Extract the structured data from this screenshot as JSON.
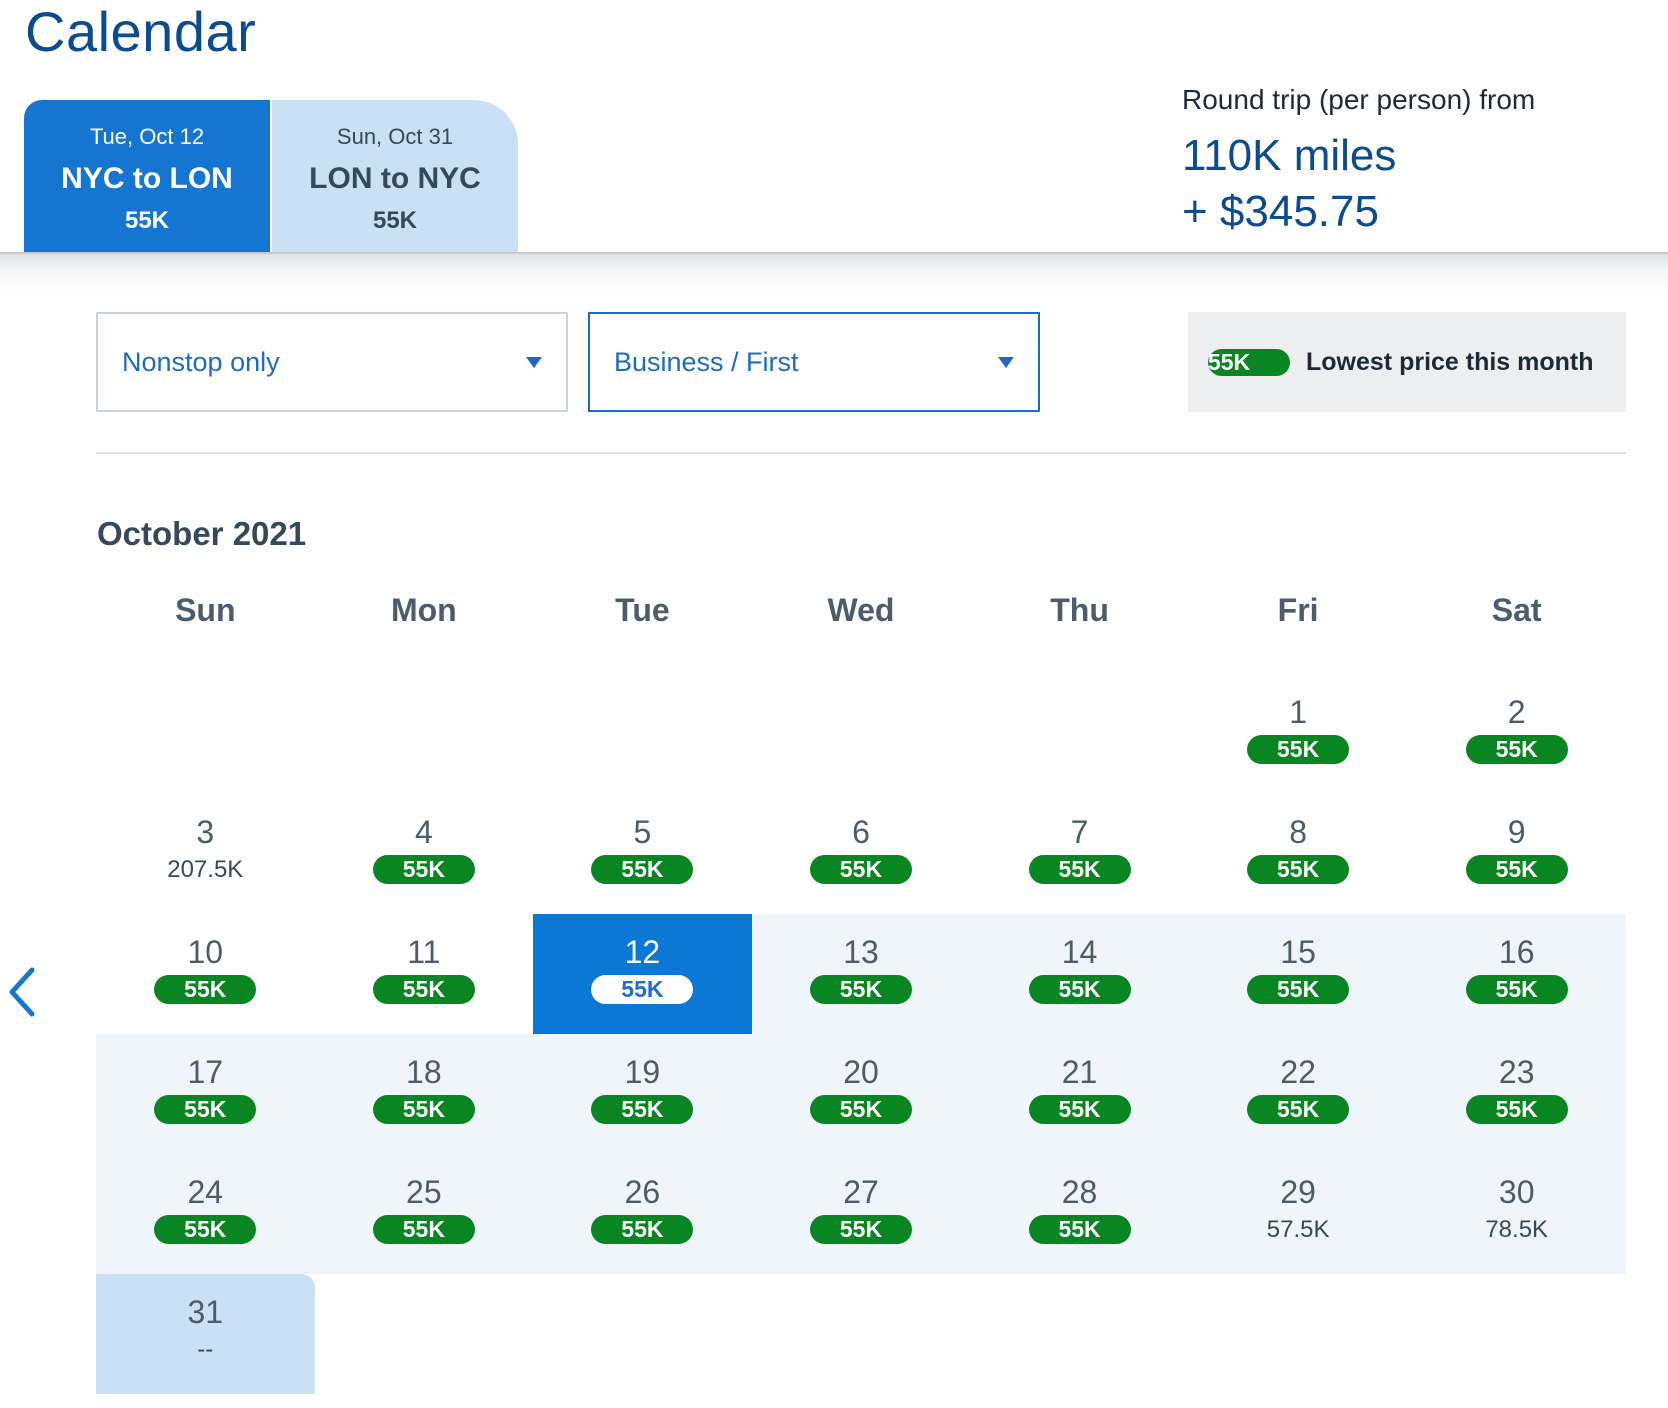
{
  "page": {
    "title": "Calendar"
  },
  "tabs": [
    {
      "date": "Tue, Oct 12",
      "route": "NYC to LON",
      "price": "55K"
    },
    {
      "date": "Sun, Oct 31",
      "route": "LON to NYC",
      "price": "55K"
    }
  ],
  "summary": {
    "label": "Round trip (per person) from",
    "miles": "110K miles",
    "cash": "+ $345.75"
  },
  "filters": {
    "stops": {
      "value": "Nonstop only"
    },
    "cabin": {
      "value": "Business / First"
    }
  },
  "legend": {
    "badge": "55K",
    "label": "Lowest price this month"
  },
  "calendar": {
    "month": "October 2021",
    "weekdays": [
      "Sun",
      "Mon",
      "Tue",
      "Wed",
      "Thu",
      "Fri",
      "Sat"
    ],
    "days": [
      {
        "day": "1",
        "price": "55K",
        "lowest": true
      },
      {
        "day": "2",
        "price": "55K",
        "lowest": true
      },
      {
        "day": "3",
        "price": "207.5K",
        "lowest": false
      },
      {
        "day": "4",
        "price": "55K",
        "lowest": true
      },
      {
        "day": "5",
        "price": "55K",
        "lowest": true
      },
      {
        "day": "6",
        "price": "55K",
        "lowest": true
      },
      {
        "day": "7",
        "price": "55K",
        "lowest": true
      },
      {
        "day": "8",
        "price": "55K",
        "lowest": true
      },
      {
        "day": "9",
        "price": "55K",
        "lowest": true
      },
      {
        "day": "10",
        "price": "55K",
        "lowest": true
      },
      {
        "day": "11",
        "price": "55K",
        "lowest": true
      },
      {
        "day": "12",
        "price": "55K",
        "lowest": true,
        "selected": true
      },
      {
        "day": "13",
        "price": "55K",
        "lowest": true
      },
      {
        "day": "14",
        "price": "55K",
        "lowest": true
      },
      {
        "day": "15",
        "price": "55K",
        "lowest": true
      },
      {
        "day": "16",
        "price": "55K",
        "lowest": true
      },
      {
        "day": "17",
        "price": "55K",
        "lowest": true
      },
      {
        "day": "18",
        "price": "55K",
        "lowest": true
      },
      {
        "day": "19",
        "price": "55K",
        "lowest": true
      },
      {
        "day": "20",
        "price": "55K",
        "lowest": true
      },
      {
        "day": "21",
        "price": "55K",
        "lowest": true
      },
      {
        "day": "22",
        "price": "55K",
        "lowest": true
      },
      {
        "day": "23",
        "price": "55K",
        "lowest": true
      },
      {
        "day": "24",
        "price": "55K",
        "lowest": true
      },
      {
        "day": "25",
        "price": "55K",
        "lowest": true
      },
      {
        "day": "26",
        "price": "55K",
        "lowest": true
      },
      {
        "day": "27",
        "price": "55K",
        "lowest": true
      },
      {
        "day": "28",
        "price": "55K",
        "lowest": true
      },
      {
        "day": "29",
        "price": "57.5K",
        "lowest": false
      },
      {
        "day": "30",
        "price": "78.5K",
        "lowest": false
      },
      {
        "day": "31",
        "price": "--",
        "lowest": false,
        "return_day": true
      }
    ]
  },
  "icons": {
    "prev_month": "chevron-left-icon",
    "dropdown": "caret-down-icon"
  },
  "colors": {
    "brand_blue": "#0b4b8f",
    "selected_blue": "#0b78d5",
    "lowest_green": "#098522",
    "trip_range_bg": "#eff5fb",
    "return_tab_bg": "#c9e0f5"
  }
}
